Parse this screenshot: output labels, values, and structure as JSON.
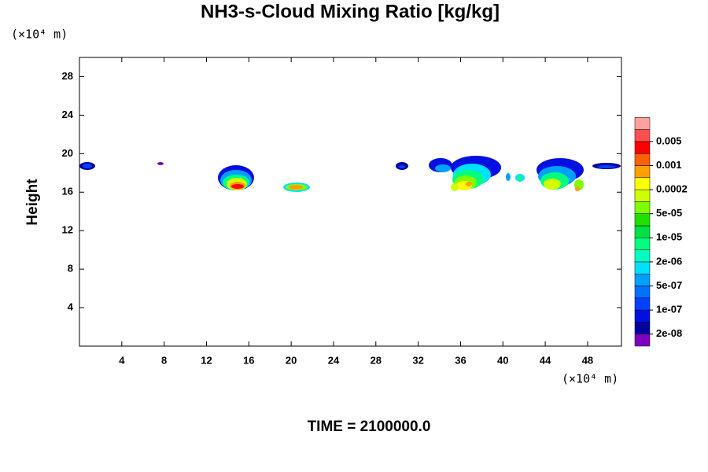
{
  "chart_data": {
    "type": "contour",
    "title": "NH3-s-Cloud Mixing Ratio [kg/kg]",
    "x_unit": "(×10⁴ m)",
    "y_unit": "(×10⁴ m)",
    "ylabel": "Height",
    "footer": "TIME = 2100000.0",
    "xlim": [
      0,
      51.2
    ],
    "ylim": [
      0,
      30
    ],
    "xticks": [
      4,
      8,
      12,
      16,
      20,
      24,
      28,
      32,
      36,
      40,
      44,
      48
    ],
    "yticks": [
      4,
      8,
      12,
      16,
      20,
      24,
      28
    ],
    "colorbar_colors": [
      "#7f00bf",
      "#0000a0",
      "#0010e0",
      "#0040ff",
      "#0070ff",
      "#00a0ff",
      "#00e0ff",
      "#00ffc0",
      "#00ff80",
      "#00e040",
      "#20e000",
      "#80ff00",
      "#d0ff00",
      "#ffff00",
      "#ffa000",
      "#ff6000",
      "#ff0000",
      "#ff5050",
      "#ffa0a0"
    ],
    "colorbar_ticks": [
      {
        "value": 2e-08,
        "label": "2e-08"
      },
      {
        "value": 1e-07,
        "label": "1e-07"
      },
      {
        "value": 5e-07,
        "label": "5e-07"
      },
      {
        "value": 2e-06,
        "label": "2e-06"
      },
      {
        "value": 1e-05,
        "label": "1e-05"
      },
      {
        "value": 5e-05,
        "label": "5e-05"
      },
      0.0002,
      0.001,
      0.005
    ]
  }
}
